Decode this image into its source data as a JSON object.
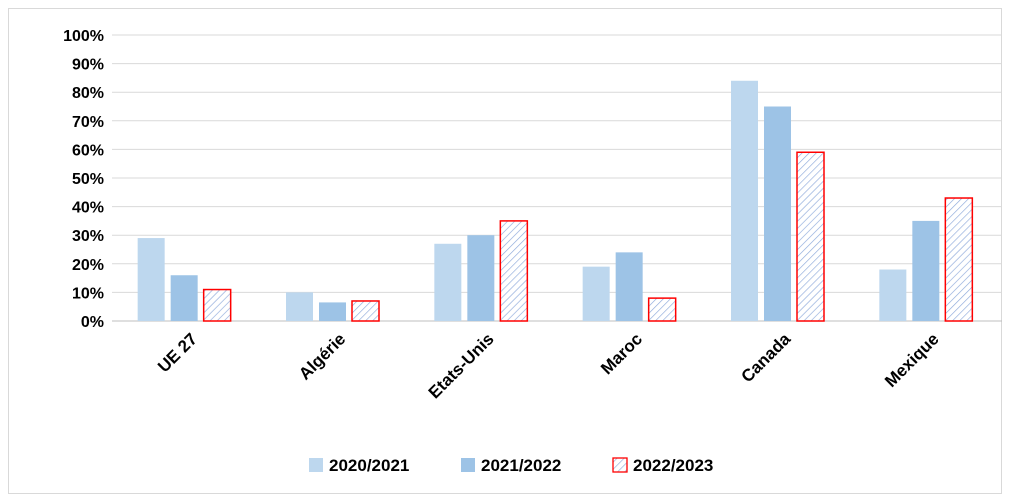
{
  "chart_data": {
    "type": "bar",
    "title": "",
    "xlabel": "",
    "ylabel": "",
    "ylim": [
      0,
      100
    ],
    "yticks": [
      "0%",
      "10%",
      "20%",
      "30%",
      "40%",
      "50%",
      "60%",
      "70%",
      "80%",
      "90%",
      "100%"
    ],
    "grid": true,
    "legend_position": "bottom",
    "categories": [
      "UE 27",
      "Algérie",
      "Etats-Unis",
      "Maroc",
      "Canada",
      "Mexique"
    ],
    "series": [
      {
        "name": "2020/2021",
        "values": [
          29,
          10,
          27,
          19,
          84,
          18
        ],
        "color": "#bdd7ee"
      },
      {
        "name": "2021/2022",
        "values": [
          16,
          6.5,
          30,
          24,
          75,
          35
        ],
        "color": "#9dc3e6"
      },
      {
        "name": "2022/2023",
        "values": [
          11,
          7,
          35,
          8,
          59,
          43
        ],
        "color": "#ff0000",
        "pattern": "hatched"
      }
    ]
  }
}
